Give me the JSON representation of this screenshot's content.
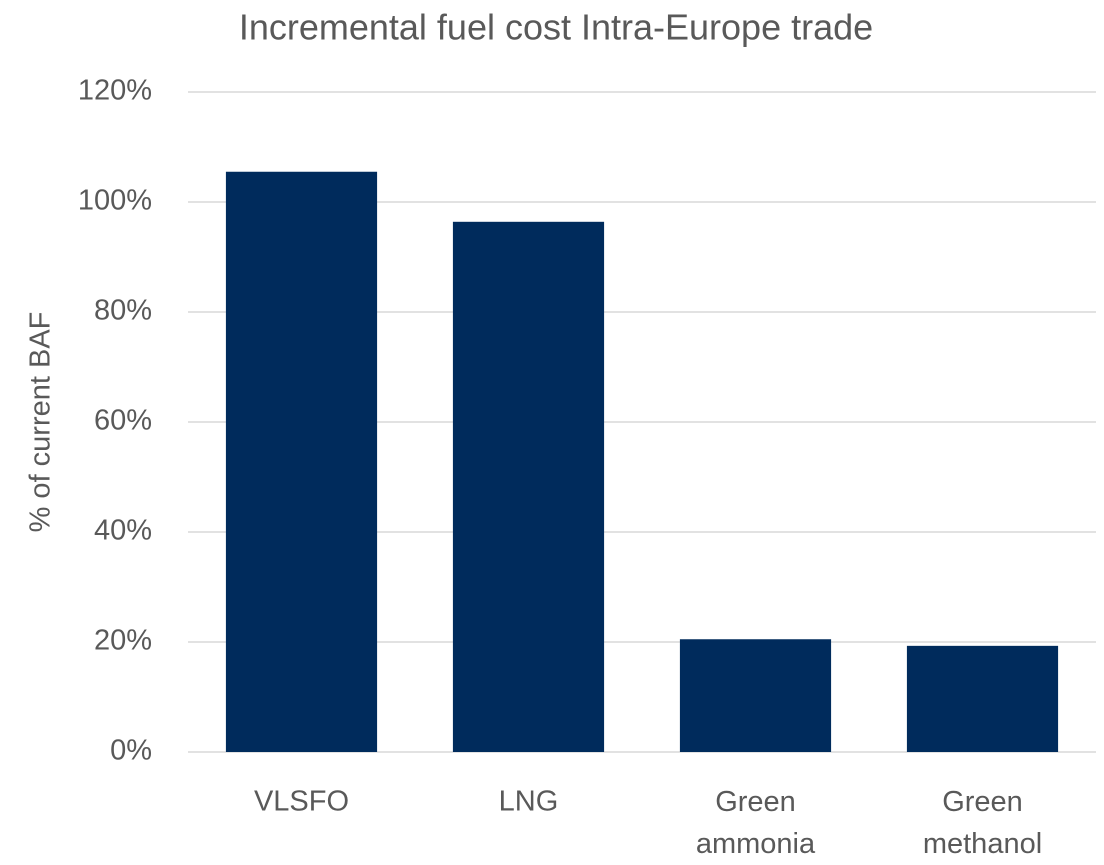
{
  "chart_data": {
    "type": "bar",
    "title": "Incremental fuel cost Intra-Europe trade",
    "y_label": "% of current BAF",
    "categories": [
      "VLSFO",
      "LNG",
      "Green ammonia",
      "Green methanol"
    ],
    "values": [
      105.5,
      96.4,
      20.5,
      19.3
    ],
    "color": "#002b5c",
    "ylim": [
      0,
      120
    ],
    "yticks": [
      {
        "value": 0,
        "label": "0%"
      },
      {
        "value": 20,
        "label": "20%"
      },
      {
        "value": 40,
        "label": "40%"
      },
      {
        "value": 60,
        "label": "60%"
      },
      {
        "value": 80,
        "label": "80%"
      },
      {
        "value": 100,
        "label": "100%"
      },
      {
        "value": 120,
        "label": "120%"
      }
    ],
    "grid": true
  }
}
